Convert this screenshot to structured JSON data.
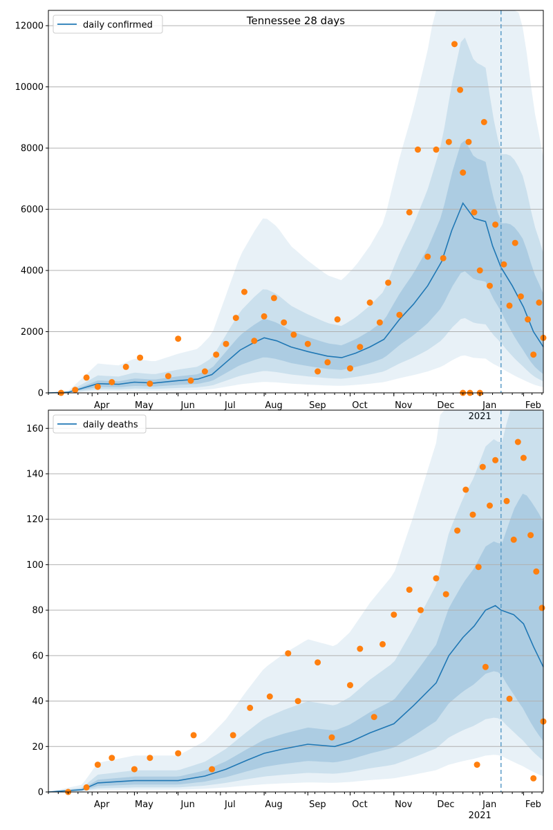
{
  "chart_data": [
    {
      "type": "line",
      "title": "Tennessee 28 days",
      "xlabel": "",
      "ylabel": "",
      "x_range": [
        "2020-03-01",
        "2021-02-15"
      ],
      "ylim": [
        0,
        12500
      ],
      "y_ticks": [
        0,
        2000,
        4000,
        6000,
        8000,
        10000,
        12000
      ],
      "x_ticks": [
        {
          "date": "2020-04-01",
          "label": "Apr"
        },
        {
          "date": "2020-05-01",
          "label": "May"
        },
        {
          "date": "2020-06-01",
          "label": "Jun"
        },
        {
          "date": "2020-07-01",
          "label": "Jul"
        },
        {
          "date": "2020-08-01",
          "label": "Aug"
        },
        {
          "date": "2020-09-01",
          "label": "Sep"
        },
        {
          "date": "2020-10-01",
          "label": "Oct"
        },
        {
          "date": "2020-11-01",
          "label": "Nov"
        },
        {
          "date": "2020-12-01",
          "label": "Dec"
        },
        {
          "date": "2021-01-01",
          "label": "Jan"
        },
        {
          "date": "2021-02-01",
          "label": "Feb"
        }
      ],
      "year_label": "2021",
      "grid": "horizontal",
      "legend_position": "upper-left",
      "forecast_start": "2021-01-16",
      "series": [
        {
          "name": "daily confirmed",
          "color": "#1f77b4",
          "kind": "line",
          "points": [
            [
              "2020-03-01",
              0
            ],
            [
              "2020-03-15",
              20
            ],
            [
              "2020-03-25",
              150
            ],
            [
              "2020-04-05",
              300
            ],
            [
              "2020-04-20",
              280
            ],
            [
              "2020-05-01",
              350
            ],
            [
              "2020-05-15",
              320
            ],
            [
              "2020-06-01",
              400
            ],
            [
              "2020-06-15",
              450
            ],
            [
              "2020-06-25",
              600
            ],
            [
              "2020-07-05",
              1000
            ],
            [
              "2020-07-15",
              1400
            ],
            [
              "2020-07-25",
              1650
            ],
            [
              "2020-08-01",
              1800
            ],
            [
              "2020-08-10",
              1700
            ],
            [
              "2020-08-20",
              1500
            ],
            [
              "2020-09-01",
              1350
            ],
            [
              "2020-09-15",
              1200
            ],
            [
              "2020-09-25",
              1150
            ],
            [
              "2020-10-05",
              1300
            ],
            [
              "2020-10-15",
              1500
            ],
            [
              "2020-10-25",
              1750
            ],
            [
              "2020-11-05",
              2400
            ],
            [
              "2020-11-15",
              2900
            ],
            [
              "2020-11-25",
              3500
            ],
            [
              "2020-12-05",
              4300
            ],
            [
              "2020-12-12",
              5300
            ],
            [
              "2020-12-20",
              6200
            ],
            [
              "2020-12-28",
              5700
            ],
            [
              "2021-01-05",
              5600
            ],
            [
              "2021-01-10",
              4800
            ],
            [
              "2021-01-16",
              4100
            ],
            [
              "2021-01-24",
              3500
            ],
            [
              "2021-02-01",
              2800
            ],
            [
              "2021-02-08",
              2000
            ],
            [
              "2021-02-15",
              1500
            ]
          ]
        },
        {
          "name": "",
          "color": "#ff7f0e",
          "kind": "scatter",
          "points": [
            [
              "2020-03-10",
              0
            ],
            [
              "2020-03-20",
              100
            ],
            [
              "2020-03-28",
              500
            ],
            [
              "2020-04-05",
              200
            ],
            [
              "2020-04-15",
              350
            ],
            [
              "2020-04-25",
              850
            ],
            [
              "2020-05-05",
              1150
            ],
            [
              "2020-05-12",
              300
            ],
            [
              "2020-05-25",
              550
            ],
            [
              "2020-06-01",
              1770
            ],
            [
              "2020-06-10",
              400
            ],
            [
              "2020-06-20",
              700
            ],
            [
              "2020-06-28",
              1250
            ],
            [
              "2020-07-05",
              1600
            ],
            [
              "2020-07-12",
              2450
            ],
            [
              "2020-07-18",
              3300
            ],
            [
              "2020-07-25",
              1700
            ],
            [
              "2020-08-01",
              2500
            ],
            [
              "2020-08-08",
              3100
            ],
            [
              "2020-08-15",
              2300
            ],
            [
              "2020-08-22",
              1900
            ],
            [
              "2020-09-01",
              1600
            ],
            [
              "2020-09-08",
              700
            ],
            [
              "2020-09-15",
              1000
            ],
            [
              "2020-09-22",
              2400
            ],
            [
              "2020-10-01",
              800
            ],
            [
              "2020-10-08",
              1500
            ],
            [
              "2020-10-15",
              2950
            ],
            [
              "2020-10-22",
              2300
            ],
            [
              "2020-10-28",
              3600
            ],
            [
              "2020-11-05",
              2550
            ],
            [
              "2020-11-12",
              5900
            ],
            [
              "2020-11-18",
              7950
            ],
            [
              "2020-11-25",
              4450
            ],
            [
              "2020-12-01",
              7950
            ],
            [
              "2020-12-06",
              4400
            ],
            [
              "2020-12-10",
              8200
            ],
            [
              "2020-12-14",
              11400
            ],
            [
              "2020-12-18",
              9900
            ],
            [
              "2020-12-20",
              7200
            ],
            [
              "2020-12-24",
              8200
            ],
            [
              "2020-12-28",
              5900
            ],
            [
              "2021-01-01",
              4000
            ],
            [
              "2021-01-04",
              8850
            ],
            [
              "2021-01-08",
              3500
            ],
            [
              "2021-01-12",
              5500
            ],
            [
              "2021-01-18",
              4200
            ],
            [
              "2021-01-22",
              2850
            ],
            [
              "2021-01-26",
              4900
            ],
            [
              "2021-01-30",
              3150
            ],
            [
              "2021-02-04",
              2400
            ],
            [
              "2021-02-08",
              1250
            ],
            [
              "2021-02-12",
              2950
            ],
            [
              "2021-02-15",
              1800
            ],
            [
              "2020-12-20",
              0
            ],
            [
              "2020-12-25",
              0
            ],
            [
              "2021-01-01",
              0
            ]
          ]
        }
      ]
    },
    {
      "type": "line",
      "title": "",
      "xlabel": "",
      "ylabel": "",
      "x_range": [
        "2020-03-01",
        "2021-02-15"
      ],
      "ylim": [
        0,
        168
      ],
      "y_ticks": [
        0,
        20,
        40,
        60,
        80,
        100,
        120,
        140,
        160
      ],
      "x_ticks": [
        {
          "date": "2020-04-01",
          "label": "Apr"
        },
        {
          "date": "2020-05-01",
          "label": "May"
        },
        {
          "date": "2020-06-01",
          "label": "Jun"
        },
        {
          "date": "2020-07-01",
          "label": "Jul"
        },
        {
          "date": "2020-08-01",
          "label": "Aug"
        },
        {
          "date": "2020-09-01",
          "label": "Sep"
        },
        {
          "date": "2020-10-01",
          "label": "Oct"
        },
        {
          "date": "2020-11-01",
          "label": "Nov"
        },
        {
          "date": "2020-12-01",
          "label": "Dec"
        },
        {
          "date": "2021-01-01",
          "label": "Jan"
        },
        {
          "date": "2021-02-01",
          "label": "Feb"
        }
      ],
      "year_label": "2021",
      "grid": "horizontal",
      "legend_position": "upper-left",
      "forecast_start": "2021-01-16",
      "series": [
        {
          "name": "daily deaths",
          "color": "#1f77b4",
          "kind": "line",
          "points": [
            [
              "2020-03-01",
              0
            ],
            [
              "2020-03-25",
              1
            ],
            [
              "2020-04-05",
              4
            ],
            [
              "2020-05-01",
              5
            ],
            [
              "2020-06-01",
              5
            ],
            [
              "2020-06-20",
              7
            ],
            [
              "2020-07-05",
              10
            ],
            [
              "2020-07-20",
              14
            ],
            [
              "2020-08-01",
              17
            ],
            [
              "2020-08-15",
              19
            ],
            [
              "2020-09-01",
              21
            ],
            [
              "2020-09-20",
              20
            ],
            [
              "2020-10-01",
              22
            ],
            [
              "2020-10-15",
              26
            ],
            [
              "2020-11-01",
              30
            ],
            [
              "2020-11-15",
              38
            ],
            [
              "2020-12-01",
              48
            ],
            [
              "2020-12-10",
              60
            ],
            [
              "2020-12-20",
              68
            ],
            [
              "2020-12-28",
              73
            ],
            [
              "2021-01-05",
              80
            ],
            [
              "2021-01-12",
              82
            ],
            [
              "2021-01-16",
              80
            ],
            [
              "2021-01-25",
              78
            ],
            [
              "2021-02-01",
              74
            ],
            [
              "2021-02-08",
              64
            ],
            [
              "2021-02-15",
              55
            ]
          ]
        },
        {
          "name": "",
          "color": "#ff7f0e",
          "kind": "scatter",
          "points": [
            [
              "2020-03-15",
              0
            ],
            [
              "2020-03-28",
              2
            ],
            [
              "2020-04-05",
              12
            ],
            [
              "2020-04-15",
              15
            ],
            [
              "2020-05-01",
              10
            ],
            [
              "2020-05-12",
              15
            ],
            [
              "2020-06-01",
              17
            ],
            [
              "2020-06-12",
              25
            ],
            [
              "2020-06-25",
              10
            ],
            [
              "2020-07-10",
              25
            ],
            [
              "2020-07-22",
              37
            ],
            [
              "2020-08-05",
              42
            ],
            [
              "2020-08-18",
              61
            ],
            [
              "2020-08-25",
              40
            ],
            [
              "2020-09-08",
              57
            ],
            [
              "2020-09-18",
              24
            ],
            [
              "2020-10-01",
              47
            ],
            [
              "2020-10-08",
              63
            ],
            [
              "2020-10-18",
              33
            ],
            [
              "2020-10-24",
              65
            ],
            [
              "2020-11-01",
              78
            ],
            [
              "2020-11-12",
              89
            ],
            [
              "2020-11-20",
              80
            ],
            [
              "2020-12-01",
              94
            ],
            [
              "2020-12-08",
              87
            ],
            [
              "2020-12-16",
              115
            ],
            [
              "2020-12-22",
              133
            ],
            [
              "2020-12-27",
              122
            ],
            [
              "2020-12-31",
              99
            ],
            [
              "2021-01-03",
              143
            ],
            [
              "2021-01-08",
              126
            ],
            [
              "2021-01-12",
              146
            ],
            [
              "2021-01-20",
              128
            ],
            [
              "2021-01-25",
              111
            ],
            [
              "2021-01-28",
              154
            ],
            [
              "2021-02-01",
              147
            ],
            [
              "2021-02-06",
              113
            ],
            [
              "2021-02-10",
              97
            ],
            [
              "2021-02-14",
              81
            ],
            [
              "2021-02-15",
              31
            ],
            [
              "2020-12-30",
              12
            ],
            [
              "2021-01-05",
              55
            ],
            [
              "2021-01-22",
              41
            ],
            [
              "2021-02-08",
              6
            ]
          ]
        }
      ]
    }
  ]
}
